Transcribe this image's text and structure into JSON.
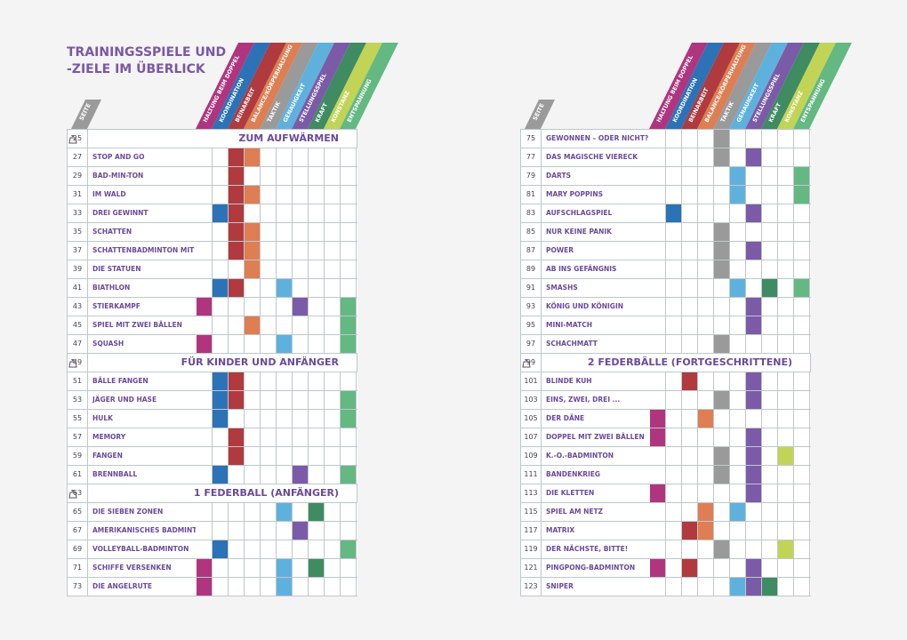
{
  "title": "Trainingsspiele und -ziele im Überlick",
  "page_header": "Seite",
  "categories": [
    {
      "label": "Haltung beim Doppel",
      "color": "#b0357f"
    },
    {
      "label": "Koordination",
      "color": "#2c72b6"
    },
    {
      "label": "Beinarbeit",
      "color": "#b03a3e"
    },
    {
      "label": "Balance/Körperhaltung",
      "color": "#de7e52"
    },
    {
      "label": "Taktik",
      "color": "#9a9a9a"
    },
    {
      "label": "Genauigkeit",
      "color": "#5fb1dd"
    },
    {
      "label": "Stellungsspiel",
      "color": "#7b5ba8"
    },
    {
      "label": "Kraft",
      "color": "#3f8b62"
    },
    {
      "label": "Konstanz",
      "color": "#c2d456"
    },
    {
      "label": "Entspannung",
      "color": "#64b882"
    }
  ],
  "left_table": [
    {
      "page": "25",
      "section": "Zum Aufwärmen"
    },
    {
      "page": "27",
      "name": "Stop and Go",
      "marks": [
        2,
        3
      ]
    },
    {
      "page": "29",
      "name": "Bad-min-ton",
      "marks": [
        2
      ]
    },
    {
      "page": "31",
      "name": "Im Wald",
      "marks": [
        2,
        3
      ]
    },
    {
      "page": "33",
      "name": "Drei gewinnt",
      "marks": [
        1,
        2
      ]
    },
    {
      "page": "35",
      "name": "Schatten",
      "marks": [
        2,
        3
      ]
    },
    {
      "page": "37",
      "name": "Schattenbadminton mit Foto",
      "marks": [
        2,
        3
      ]
    },
    {
      "page": "39",
      "name": "Die Statuen",
      "marks": [
        3
      ]
    },
    {
      "page": "41",
      "name": "Biathlon",
      "marks": [
        1,
        2,
        5
      ]
    },
    {
      "page": "43",
      "name": "Stierkampf",
      "marks": [
        0,
        6,
        9
      ]
    },
    {
      "page": "45",
      "name": "Spiel mit zwei Bällen",
      "marks": [
        3,
        9
      ]
    },
    {
      "page": "47",
      "name": "Squash",
      "marks": [
        0,
        5,
        9
      ]
    },
    {
      "page": "49",
      "section": "Für Kinder und Anfänger"
    },
    {
      "page": "51",
      "name": "Bälle fangen",
      "marks": [
        1,
        2
      ]
    },
    {
      "page": "53",
      "name": "Jäger und Hase",
      "marks": [
        1,
        2,
        9
      ]
    },
    {
      "page": "55",
      "name": "Hulk",
      "marks": [
        1,
        9
      ]
    },
    {
      "page": "57",
      "name": "Memory",
      "marks": [
        2
      ]
    },
    {
      "page": "59",
      "name": "Fangen",
      "marks": [
        2
      ]
    },
    {
      "page": "61",
      "name": "Brennball",
      "marks": [
        1,
        6,
        9
      ]
    },
    {
      "page": "63",
      "section": "1 Federball (Anfänger)"
    },
    {
      "page": "65",
      "name": "Die sieben Zonen",
      "marks": [
        5,
        7
      ]
    },
    {
      "page": "67",
      "name": "Amerikanisches Badminton",
      "marks": [
        6
      ]
    },
    {
      "page": "69",
      "name": "Volleyball-Badminton",
      "marks": [
        1,
        9
      ]
    },
    {
      "page": "71",
      "name": "Schiffe versenken",
      "marks": [
        0,
        5,
        7
      ]
    },
    {
      "page": "73",
      "name": "Die Angelrute",
      "marks": [
        0,
        5
      ]
    }
  ],
  "right_table": [
    {
      "page": "75",
      "name": "Gewonnen – oder nicht?",
      "marks": [
        4
      ]
    },
    {
      "page": "77",
      "name": "Das magische Viereck",
      "marks": [
        4,
        6
      ]
    },
    {
      "page": "79",
      "name": "Darts",
      "marks": [
        5,
        9
      ]
    },
    {
      "page": "81",
      "name": "Mary Poppins",
      "marks": [
        5,
        9
      ]
    },
    {
      "page": "83",
      "name": "Aufschlagspiel",
      "marks": [
        1,
        6
      ]
    },
    {
      "page": "85",
      "name": "Nur keine Panik",
      "marks": [
        4
      ]
    },
    {
      "page": "87",
      "name": "Power",
      "marks": [
        4,
        6
      ]
    },
    {
      "page": "89",
      "name": "Ab ins Gefängnis",
      "marks": [
        4
      ]
    },
    {
      "page": "91",
      "name": "Smashs",
      "marks": [
        5,
        7,
        9
      ]
    },
    {
      "page": "93",
      "name": "König und Königin",
      "marks": [
        6
      ]
    },
    {
      "page": "95",
      "name": "Mini-Match",
      "marks": [
        6
      ]
    },
    {
      "page": "97",
      "name": "Schachmatt",
      "marks": [
        4
      ]
    },
    {
      "page": "99",
      "section": "2 Federbälle (Fortgeschrittene)"
    },
    {
      "page": "101",
      "name": "Blinde Kuh",
      "marks": [
        2,
        6
      ]
    },
    {
      "page": "103",
      "name": "Eins, zwei, drei ...",
      "marks": [
        4,
        6
      ]
    },
    {
      "page": "105",
      "name": "Der Däne",
      "marks": [
        0,
        3
      ]
    },
    {
      "page": "107",
      "name": "Doppel mit zwei Bällen",
      "marks": [
        0,
        6
      ]
    },
    {
      "page": "109",
      "name": "K.-o.-Badminton",
      "marks": [
        4,
        6,
        8
      ]
    },
    {
      "page": "111",
      "name": "Bandenkrieg",
      "marks": [
        4,
        6
      ]
    },
    {
      "page": "113",
      "name": "Die Kletten",
      "marks": [
        0,
        6
      ]
    },
    {
      "page": "115",
      "name": "Spiel am Netz",
      "marks": [
        3,
        5
      ]
    },
    {
      "page": "117",
      "name": "Matrix",
      "marks": [
        2,
        3
      ]
    },
    {
      "page": "119",
      "name": "Der Nächste, bitte!",
      "marks": [
        4,
        8
      ]
    },
    {
      "page": "121",
      "name": "Pingpong-Badminton",
      "marks": [
        0,
        2,
        6
      ]
    },
    {
      "page": "123",
      "name": "Sniper",
      "marks": [
        5,
        6,
        7
      ]
    }
  ]
}
